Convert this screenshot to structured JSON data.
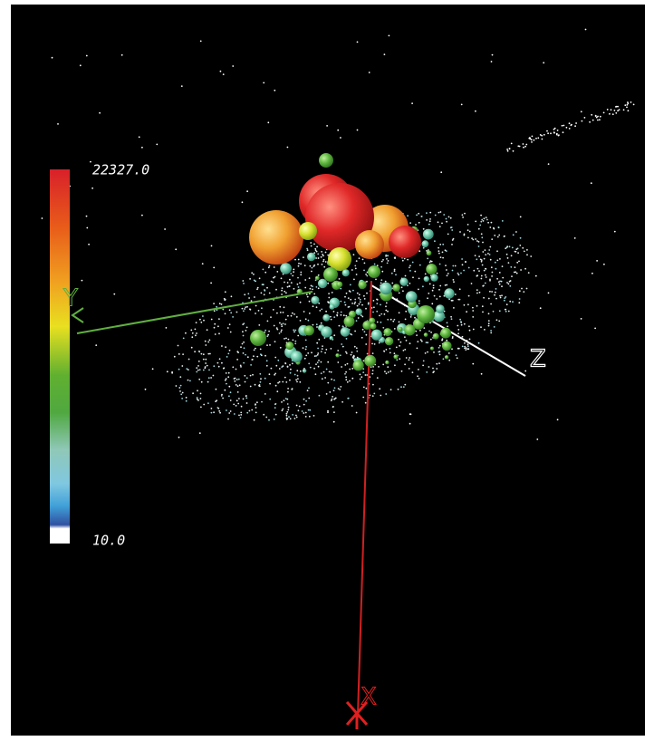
{
  "colorbar": {
    "max_label": "22327.0",
    "min_label": "10.0"
  },
  "axes": {
    "x_label": "X",
    "y_label": "Y",
    "z_label": "Z"
  }
}
